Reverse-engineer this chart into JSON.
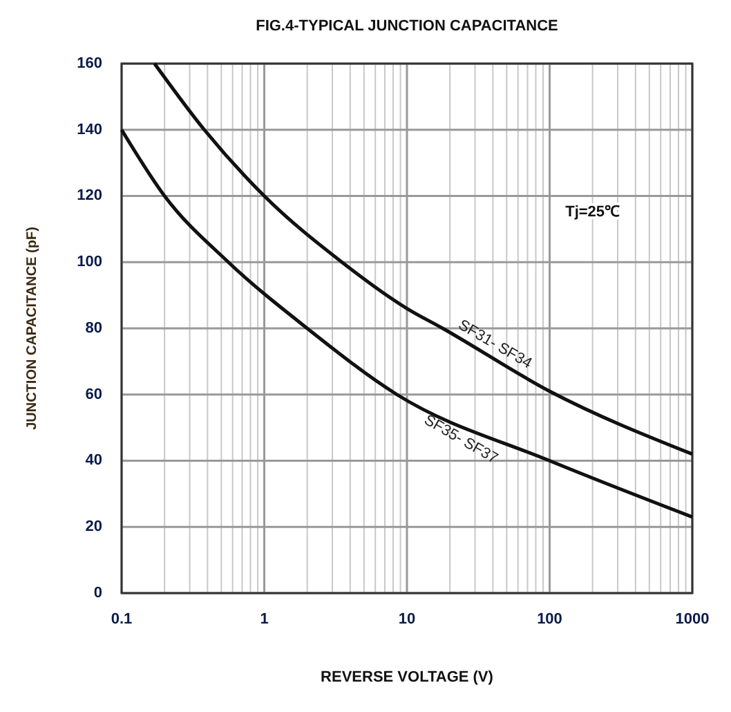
{
  "chart_data": {
    "type": "line",
    "title": "FIG.4-TYPICAL JUNCTION CAPACITANCE",
    "xlabel": "REVERSE VOLTAGE (V)",
    "ylabel": "JUNCTION CAPACITANCE (pF)",
    "log": "x",
    "xlim": [
      0.1,
      1000
    ],
    "ylim": [
      0,
      160
    ],
    "xticks": [
      0.1,
      {
        "value": 0.2,
        "label": null
      },
      {
        "value": 0.3,
        "label": null
      },
      {
        "value": 0.4,
        "label": null
      },
      {
        "value": 0.5,
        "label": null
      },
      {
        "value": 0.6,
        "label": null
      },
      {
        "value": 0.7,
        "label": null
      },
      {
        "value": 0.8,
        "label": null
      },
      {
        "value": 0.9,
        "label": null
      },
      1,
      {
        "value": 2,
        "label": null
      },
      {
        "value": 3,
        "label": null
      },
      {
        "value": 4,
        "label": null
      },
      {
        "value": 5,
        "label": null
      },
      {
        "value": 6,
        "label": null
      },
      {
        "value": 7,
        "label": null
      },
      {
        "value": 8,
        "label": null
      },
      {
        "value": 9,
        "label": null
      },
      10,
      {
        "value": 20,
        "label": null
      },
      {
        "value": 30,
        "label": null
      },
      {
        "value": 40,
        "label": null
      },
      {
        "value": 50,
        "label": null
      },
      {
        "value": 60,
        "label": null
      },
      {
        "value": 70,
        "label": null
      },
      {
        "value": 80,
        "label": null
      },
      {
        "value": 90,
        "label": null
      },
      100,
      {
        "value": 200,
        "label": null
      },
      {
        "value": 300,
        "label": null
      },
      {
        "value": 400,
        "label": null
      },
      {
        "value": 500,
        "label": null
      },
      {
        "value": 600,
        "label": null
      },
      {
        "value": 700,
        "label": null
      },
      {
        "value": 800,
        "label": null
      },
      {
        "value": 900,
        "label": null
      },
      1000
    ],
    "yticks": [
      0,
      20,
      40,
      60,
      80,
      100,
      120,
      140,
      160
    ],
    "grid": true,
    "line_style": "solid",
    "series": [
      {
        "name": "SF31- SF34",
        "color": "#111111",
        "x": [
          0.17,
          0.38,
          1,
          3.5,
          10,
          17.8,
          100,
          1000
        ],
        "values": [
          160,
          140,
          120,
          100,
          86,
          80,
          61,
          42
        ]
      },
      {
        "name": "SF35- SF37",
        "color": "#111111",
        "x": [
          0.1,
          0.2,
          0.56,
          2,
          8.5,
          100,
          1000
        ],
        "values": [
          140,
          120,
          100,
          80,
          60,
          40,
          23
        ]
      }
    ],
    "annotations": [
      "Tj=25℃"
    ]
  }
}
